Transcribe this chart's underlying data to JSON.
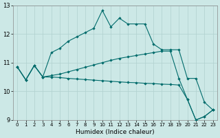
{
  "xlabel": "Humidex (Indice chaleur)",
  "ylabel": "",
  "xlim": [
    -0.5,
    23.5
  ],
  "ylim": [
    9,
    13
  ],
  "yticks": [
    9,
    10,
    11,
    12,
    13
  ],
  "xticks": [
    0,
    1,
    2,
    3,
    4,
    5,
    6,
    7,
    8,
    9,
    10,
    11,
    12,
    13,
    14,
    15,
    16,
    17,
    18,
    19,
    20,
    21,
    22,
    23
  ],
  "bg_color": "#cce8e6",
  "line_color": "#006b6b",
  "grid_color": "#b0d0ce",
  "series": [
    [
      10.85,
      10.4,
      10.9,
      10.5,
      11.35,
      11.5,
      11.75,
      11.9,
      12.05,
      12.2,
      12.82,
      12.25,
      12.55,
      12.35,
      12.35,
      12.35,
      11.65,
      11.45,
      11.45,
      11.45,
      10.45,
      10.45,
      9.62,
      9.35
    ],
    [
      10.85,
      10.4,
      10.9,
      10.5,
      10.55,
      10.6,
      10.68,
      10.76,
      10.84,
      10.92,
      11.0,
      11.08,
      11.15,
      11.2,
      11.25,
      11.3,
      11.35,
      11.4,
      11.4,
      10.45,
      9.72,
      9.0,
      9.12,
      9.35
    ],
    [
      10.85,
      10.4,
      10.9,
      10.5,
      10.5,
      10.48,
      10.45,
      10.43,
      10.41,
      10.39,
      10.37,
      10.35,
      10.33,
      10.31,
      10.3,
      10.28,
      10.27,
      10.25,
      10.24,
      10.22,
      9.72,
      9.0,
      9.12,
      9.35
    ]
  ]
}
